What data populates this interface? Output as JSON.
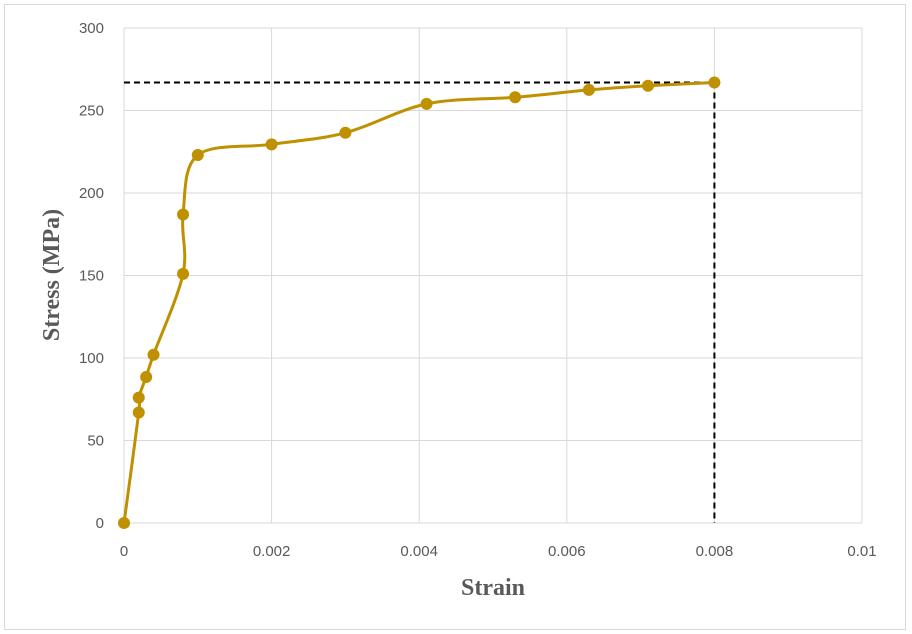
{
  "chart_data": {
    "type": "line",
    "xlabel": "Strain",
    "ylabel": "Stress (MPa)",
    "xlim": [
      0,
      0.01
    ],
    "ylim": [
      0,
      300
    ],
    "x_ticks": [
      "0",
      "0.002",
      "0.004",
      "0.006",
      "0.008",
      "0.01"
    ],
    "y_ticks": [
      "0",
      "50",
      "100",
      "150",
      "200",
      "250",
      "300"
    ],
    "grid": true,
    "smoothed": true,
    "markers": true,
    "series_color": "#BF9000",
    "series": [
      {
        "x": [
          0,
          0.0002,
          0.0002,
          0.0003,
          0.0004,
          0.0008,
          0.0008,
          0.001,
          0.002,
          0.003,
          0.0041,
          0.0053,
          0.0063,
          0.0071,
          0.008
        ],
        "y": [
          0,
          67,
          76,
          88.5,
          102,
          151,
          187,
          223,
          229.5,
          236.5,
          254,
          258,
          262.5,
          265,
          267
        ]
      }
    ],
    "reference_lines": {
      "x": 0.008,
      "y": 267,
      "style": "dashed",
      "color": "#000000"
    }
  }
}
